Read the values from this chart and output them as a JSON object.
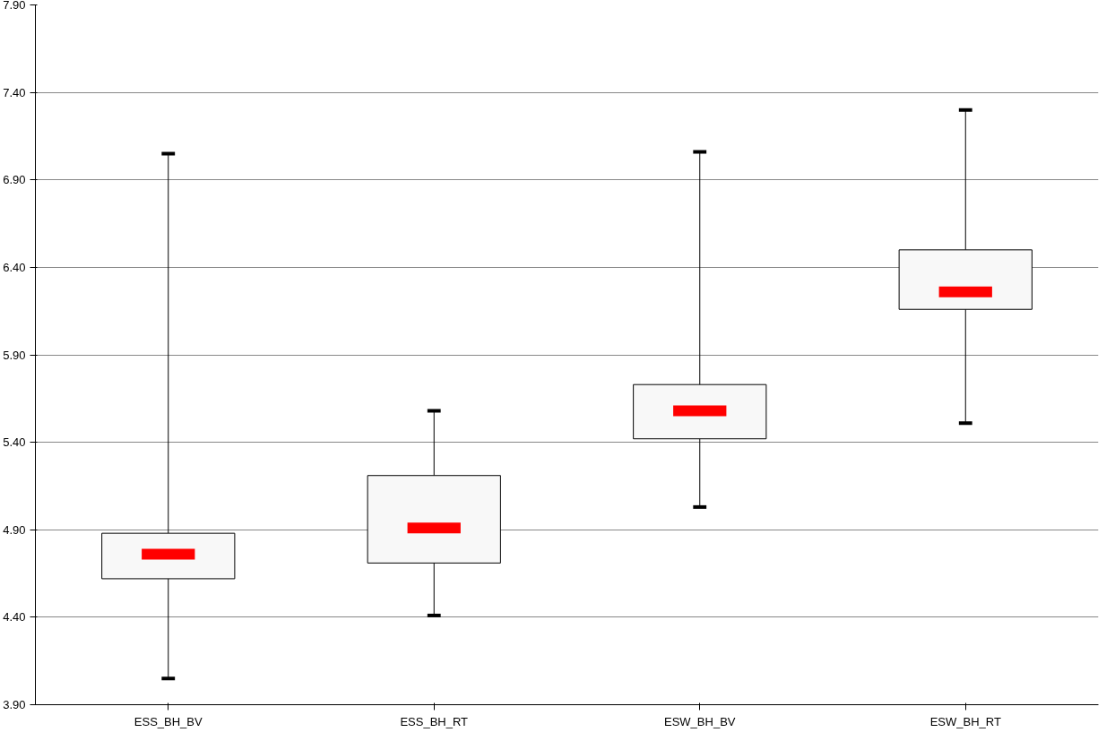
{
  "chart_data": {
    "type": "box",
    "categories": [
      "ESS_BH_BV",
      "ESS_BH_RT",
      "ESW_BH_BV",
      "ESW_BH_RT"
    ],
    "boxes": [
      {
        "low": 4.05,
        "q1": 4.62,
        "median": 4.76,
        "q3": 4.88,
        "high": 7.05
      },
      {
        "low": 4.41,
        "q1": 4.71,
        "median": 4.91,
        "q3": 5.21,
        "high": 5.58
      },
      {
        "low": 5.03,
        "q1": 5.42,
        "median": 5.58,
        "q3": 5.73,
        "high": 7.06
      },
      {
        "low": 5.51,
        "q1": 6.16,
        "median": 6.26,
        "q3": 6.5,
        "high": 7.3
      }
    ],
    "color": "#f8f8f8",
    "ylim": [
      3.9,
      7.9
    ],
    "yticks": [
      {
        "value": 3.9,
        "label": "3.90"
      },
      {
        "value": 4.4,
        "label": "4.40"
      },
      {
        "value": 4.9,
        "label": "4.90"
      },
      {
        "value": 5.4,
        "label": "5.40"
      },
      {
        "value": 5.9,
        "label": "5.90"
      },
      {
        "value": 6.4,
        "label": "6.40"
      },
      {
        "value": 6.9,
        "label": "6.90"
      },
      {
        "value": 7.4,
        "label": "7.40"
      },
      {
        "value": 7.9,
        "label": "7.90"
      }
    ],
    "grid": "y"
  }
}
